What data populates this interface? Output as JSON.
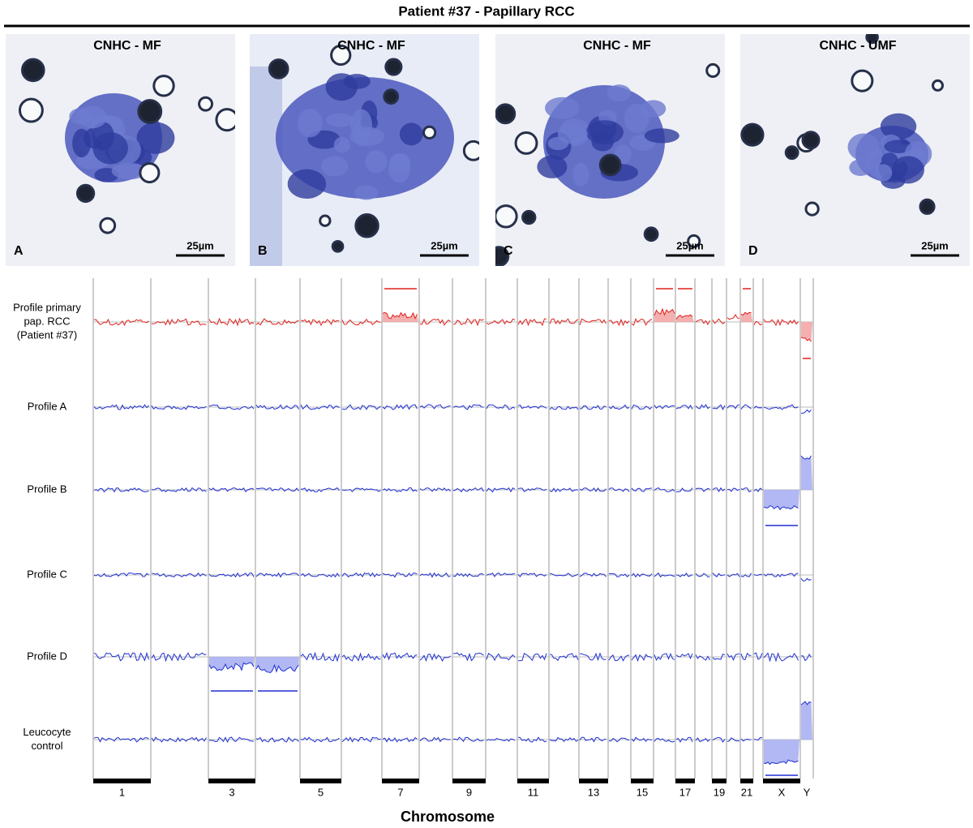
{
  "title": "Patient #37 - Papillary RCC",
  "panels": [
    {
      "label": "CNHC - MF",
      "letter": "A",
      "scale": "25µm"
    },
    {
      "label": "CNHC - MF",
      "letter": "B",
      "scale": "25µm"
    },
    {
      "label": "CNHC - MF",
      "letter": "C",
      "scale": "25µm"
    },
    {
      "label": "CNHC - UMF",
      "letter": "D",
      "scale": "25µm"
    }
  ],
  "profiles": [
    {
      "label": [
        "Profile primary",
        "pap. RCC",
        "(Patient #37)"
      ]
    },
    {
      "label": [
        "Profile A"
      ]
    },
    {
      "label": [
        "Profile B"
      ]
    },
    {
      "label": [
        "Profile C"
      ]
    },
    {
      "label": [
        "Profile D"
      ]
    },
    {
      "label": [
        "Leucocyte",
        "control"
      ]
    }
  ],
  "chromosome_labels": [
    "1",
    "3",
    "5",
    "7",
    "9",
    "11",
    "13",
    "15",
    "17",
    "19",
    "21",
    "X",
    "Y"
  ],
  "x_label": "Chromosome"
}
